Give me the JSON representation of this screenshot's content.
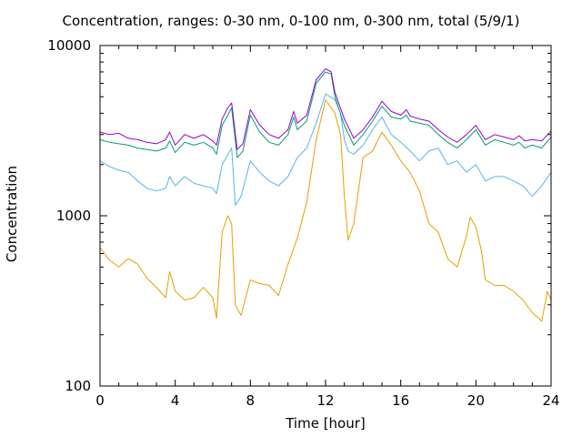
{
  "chart_data": {
    "type": "line",
    "title": "Concentration, ranges: 0-30 nm, 0-100 nm, 0-300 nm, total (5/9/1)",
    "xlabel": "Time [hour]",
    "ylabel": "Concentration",
    "xlim": [
      0,
      24
    ],
    "ylim": [
      100,
      10000
    ],
    "yscale": "log",
    "grid": false,
    "legend": "none",
    "x_ticks": [
      0,
      4,
      8,
      12,
      16,
      20,
      24
    ],
    "y_ticks": [
      {
        "value": 100,
        "label": "100"
      },
      {
        "value": 1000,
        "label": "1000"
      },
      {
        "value": 10000,
        "label": "10000"
      }
    ],
    "series": [
      {
        "color": "#e69f00",
        "x": [
          0,
          0.5,
          1,
          1.5,
          2,
          2.5,
          3,
          3.5,
          3.7,
          4,
          4.5,
          5,
          5.5,
          6,
          6.2,
          6.5,
          6.8,
          7,
          7.2,
          7.5,
          8,
          8.5,
          9,
          9.5,
          10,
          10.5,
          11,
          11.5,
          12,
          12.5,
          12.8,
          13,
          13.2,
          13.5,
          14,
          14.5,
          15,
          15.5,
          16,
          16.5,
          17,
          17.5,
          18,
          18.5,
          19,
          19.5,
          19.7,
          20,
          20.3,
          20.5,
          21,
          21.5,
          22,
          22.5,
          23,
          23.5,
          23.8,
          24
        ],
        "y": [
          650,
          550,
          500,
          560,
          520,
          430,
          380,
          330,
          470,
          360,
          320,
          330,
          380,
          330,
          250,
          800,
          1000,
          900,
          300,
          260,
          420,
          400,
          390,
          340,
          520,
          740,
          1200,
          2800,
          4800,
          4000,
          3000,
          1300,
          720,
          900,
          2200,
          2400,
          3100,
          2600,
          2100,
          1800,
          1400,
          900,
          800,
          560,
          500,
          760,
          980,
          860,
          620,
          420,
          390,
          390,
          360,
          320,
          270,
          240,
          360,
          320
        ]
      },
      {
        "color": "#56b4e9",
        "x": [
          0,
          0.5,
          1,
          1.5,
          2,
          2.5,
          3,
          3.5,
          3.7,
          4,
          4.5,
          5,
          5.5,
          6,
          6.2,
          6.5,
          7,
          7.2,
          7.5,
          8,
          8.5,
          9,
          9.5,
          10,
          10.5,
          11,
          11.5,
          12,
          12.5,
          12.8,
          13,
          13.2,
          13.5,
          14,
          14.5,
          15,
          15.5,
          16,
          16.5,
          17,
          17.5,
          18,
          18.5,
          19,
          19.5,
          20,
          20.5,
          21,
          21.5,
          22,
          22.5,
          23,
          23.5,
          24
        ],
        "y": [
          2100,
          1950,
          1850,
          1800,
          1600,
          1450,
          1400,
          1450,
          1700,
          1500,
          1700,
          1550,
          1500,
          1450,
          1350,
          2000,
          2500,
          1150,
          1300,
          2100,
          1800,
          1600,
          1500,
          1700,
          2200,
          2500,
          3500,
          5200,
          4800,
          4000,
          2800,
          2400,
          2300,
          2600,
          3200,
          3800,
          3000,
          2700,
          2400,
          2100,
          2400,
          2500,
          2000,
          2100,
          1800,
          2000,
          1600,
          1700,
          1700,
          1600,
          1500,
          1300,
          1500,
          1800
        ]
      },
      {
        "color": "#009e73",
        "x": [
          0,
          0.5,
          1,
          1.5,
          2,
          2.5,
          3,
          3.5,
          3.7,
          4,
          4.5,
          5,
          5.5,
          6,
          6.2,
          6.5,
          6.8,
          7,
          7.3,
          7.6,
          8,
          8.5,
          9,
          9.5,
          10,
          10.3,
          10.5,
          11,
          11.5,
          12,
          12.3,
          12.5,
          13,
          13.5,
          14,
          14.5,
          15,
          15.5,
          16,
          16.3,
          16.5,
          17,
          17.5,
          18,
          18.5,
          19,
          19.5,
          20,
          20.5,
          21,
          21.5,
          22,
          22.3,
          22.6,
          23,
          23.5,
          24
        ],
        "y": [
          2800,
          2700,
          2650,
          2600,
          2500,
          2450,
          2400,
          2500,
          2750,
          2350,
          2700,
          2600,
          2700,
          2500,
          2300,
          3400,
          3900,
          4300,
          2200,
          2400,
          3900,
          3100,
          2700,
          2600,
          3000,
          3800,
          3200,
          3600,
          6000,
          7000,
          6800,
          5000,
          3400,
          2600,
          3000,
          3600,
          4400,
          3800,
          3700,
          3900,
          3600,
          3500,
          3400,
          3000,
          2700,
          2500,
          2800,
          3200,
          2600,
          2800,
          2700,
          2600,
          2700,
          2500,
          2600,
          2500,
          2900
        ]
      },
      {
        "color": "#9400d3",
        "x": [
          0,
          0.5,
          1,
          1.5,
          2,
          2.5,
          3,
          3.5,
          3.7,
          4,
          4.5,
          5,
          5.5,
          6,
          6.2,
          6.5,
          6.8,
          7,
          7.3,
          7.6,
          8,
          8.5,
          9,
          9.5,
          10,
          10.3,
          10.5,
          11,
          11.5,
          12,
          12.3,
          12.5,
          13,
          13.5,
          14,
          14.5,
          15,
          15.5,
          16,
          16.3,
          16.5,
          17,
          17.5,
          18,
          18.5,
          19,
          19.5,
          20,
          20.5,
          21,
          21.5,
          22,
          22.3,
          22.6,
          23,
          23.5,
          24
        ],
        "y": [
          3100,
          3000,
          3050,
          2850,
          2800,
          2700,
          2650,
          2800,
          3100,
          2600,
          3000,
          2850,
          3000,
          2750,
          2600,
          3700,
          4300,
          4600,
          2450,
          2650,
          4200,
          3400,
          3000,
          2850,
          3200,
          4100,
          3500,
          3900,
          6300,
          7300,
          7000,
          5300,
          3700,
          2850,
          3200,
          3800,
          4700,
          4100,
          3900,
          4200,
          3850,
          3700,
          3600,
          3200,
          2900,
          2700,
          3000,
          3400,
          2800,
          3000,
          2900,
          2800,
          2950,
          2750,
          2800,
          2750,
          3150
        ]
      }
    ]
  }
}
